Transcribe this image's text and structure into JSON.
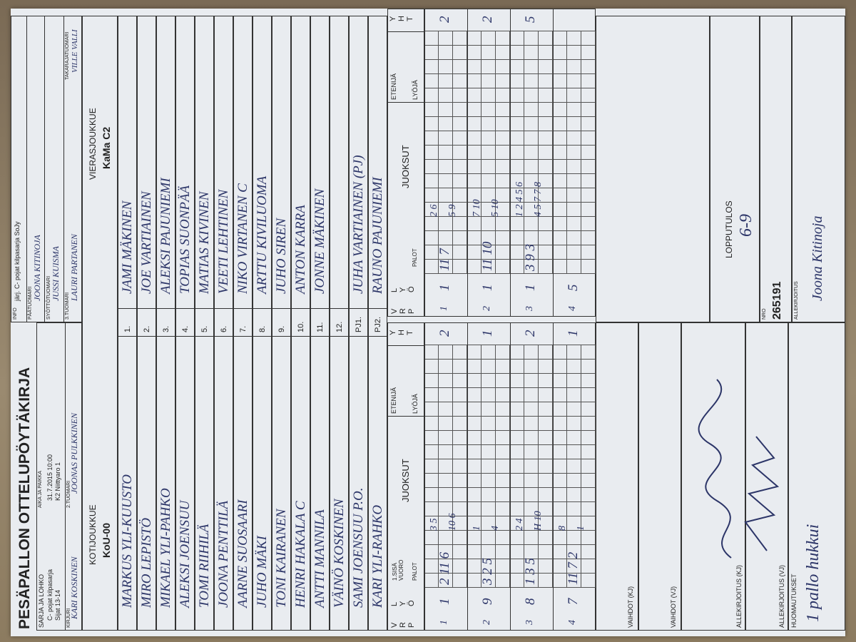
{
  "header": {
    "title": "PESÄPALLON OTTELUPÖYTÄKIRJA",
    "series_label": "SARJA JA LOHKO",
    "series": "C- pojat kilpasarja",
    "series_2": "Sijat 13-14",
    "time_place_label": "AIKA JA PAIKKA",
    "time": "31.7.2015 10:00",
    "place": "K2 Niittyaro 1",
    "referee2_label": "2.TUOMARI",
    "referee2": "JOONAS PULKKINEN",
    "scorer_label": "KIRJURI",
    "scorer": "KARI KOSKINEN",
    "info_label": "INFO",
    "info": "järj. C- pojat kilpasarja SoJy",
    "head_referee_label": "PÄÄTUOMARI",
    "head_referee": "JOONA KITINOJA",
    "pitch_referee_label": "SYÖTTÖTUOMARI",
    "pitch_referee": "JUSSI KUISMA",
    "referee3_label": "3.TUOMARI",
    "referee3": "LAURI PARTANEN",
    "back_referee_label": "TAKARAJATUOMARI",
    "back_referee": "VILLE VALLI"
  },
  "teams": {
    "home_label": "KOTIJOUKKUE",
    "home": "KoU-00",
    "away_label": "VIERASJOUKKUE",
    "away": "KaMa C2"
  },
  "players": {
    "numbers": [
      "1.",
      "2.",
      "3.",
      "4.",
      "5.",
      "6.",
      "7.",
      "8.",
      "9.",
      "10.",
      "11.",
      "12.",
      "PJ1.",
      "PJ2."
    ],
    "home": [
      "MARKUS YLI-KUUSTO",
      "MIRO LEPISTÖ",
      "MIKAEL YLI-PAHKO",
      "ALEKSI JOENSUU",
      "TOMI RIIHILÄ",
      "JOONA PENTTILÄ",
      "AARNE SUOSAARI",
      "JUHO MÄKI",
      "TONI KAIRANEN",
      "HENRI HAKALA C",
      "ANTTI MANNILA",
      "VÄINÖ KOSKINEN",
      "SAMI JOENSUU P.O.",
      "KARI YLI-RAHKO"
    ],
    "away": [
      "JAMI MÄKINEN",
      "JOE VARTIAINEN",
      "ALEKSI PAJUNIEMI",
      "TOPIAS SUONPÄÄ",
      "MATIAS KIVINEN",
      "VEETI LEHTINEN",
      "NIKO VIRTANEN C",
      "ARTTU KIVILUOMA",
      "JUHO SIREN",
      "ANTON KARRA",
      "JONNE MÄKINEN",
      null,
      "JUHA VARTIAINEN (PJ)",
      "RAUNO PAJUNIEMI"
    ]
  },
  "scoring": {
    "vrp": "V R P",
    "lyo": "L Y Ö",
    "first": "1.SISÄ VUORO",
    "palot": "PALOT",
    "juoksut": "JUOKSUT",
    "etenija": "ETENIJÄ",
    "lyoja": "LYÖJÄ",
    "yht": "Y H T",
    "home_innings": [
      {
        "v": "1",
        "l": "1",
        "palot": "2 11 6",
        "runs_top": "3 5",
        "runs_bottom": "10 6",
        "yht": "2"
      },
      {
        "v": "2",
        "l": "9",
        "palot": "3 2 5",
        "runs_top": "1",
        "runs_bottom": "4",
        "yht": "1"
      },
      {
        "v": "3",
        "l": "8",
        "palot": "1 3 5",
        "runs_top": "2 4",
        "runs_bottom": "H 10",
        "yht": "2"
      },
      {
        "v": "4",
        "l": "7",
        "palot": "11 7 2",
        "runs_top": "8",
        "runs_bottom": "1",
        "yht": "1"
      }
    ],
    "away_innings": [
      {
        "v": "1",
        "l": "1",
        "palot": "11 7",
        "runs_top": "2 6",
        "runs_bottom": "5 9",
        "yht": "2"
      },
      {
        "v": "2",
        "l": "1",
        "palot": "11 10",
        "runs_top": "7 10",
        "runs_bottom": "5 10",
        "yht": "2"
      },
      {
        "v": "3",
        "l": "1",
        "palot": "3 9 3",
        "runs_top": "1 2 4 5 6",
        "runs_bottom": "4 5 7 7 8",
        "yht": "5"
      },
      {
        "v": "4",
        "l": "5",
        "palot": "",
        "runs_top": "",
        "runs_bottom": "",
        "yht": ""
      }
    ]
  },
  "footer": {
    "subs_home": "VAIHDOT (KJ)",
    "subs_away": "VAIHDOT (VJ)",
    "sign_home": "ALLEKIRJOITUS (KJ)",
    "sign_away": "ALLEKIRJOITUS (VJ)",
    "notes_label": "HUOMAUTUKSET",
    "notes": "1 pallo hukkui",
    "result_label": "LOPPUTULOS",
    "result": "6-9",
    "nro_label": "NRO",
    "nro": "265191",
    "signature_label": "ALLEKIRJOITUS",
    "signature": "Joona Kitinoja"
  }
}
